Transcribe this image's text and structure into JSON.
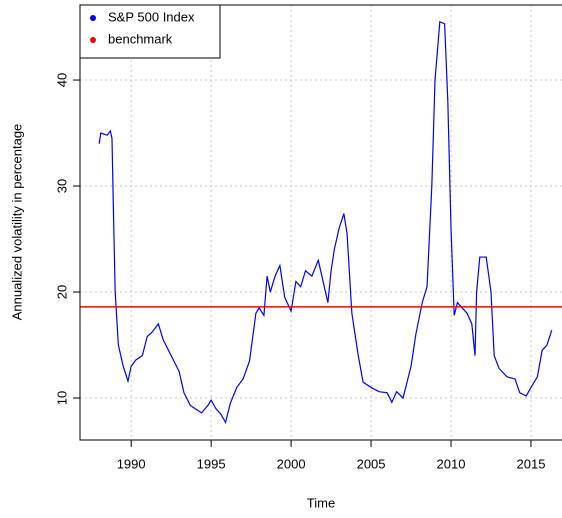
{
  "chart_data": {
    "type": "line",
    "x_label": "Time",
    "y_label": "Annualized volatility in percentage",
    "xlim": [
      1986.8,
      2016.94
    ],
    "ylim": [
      6.04,
      47.08
    ],
    "xticks": [
      1990,
      1995,
      2000,
      2005,
      2010,
      2015
    ],
    "yticks": [
      10,
      20,
      30,
      40
    ],
    "grid": true,
    "legend": "top-left",
    "x": [
      1988.0,
      1988.1,
      1988.5,
      1988.7,
      1988.8,
      1988.9,
      1989.0,
      1989.2,
      1989.5,
      1989.8,
      1990.0,
      1990.3,
      1990.7,
      1991.0,
      1991.3,
      1991.7,
      1992.0,
      1992.5,
      1993.0,
      1993.3,
      1993.7,
      1994.0,
      1994.4,
      1994.8,
      1995.0,
      1995.3,
      1995.6,
      1995.9,
      1996.2,
      1996.6,
      1997.0,
      1997.4,
      1997.8,
      1998.0,
      1998.3,
      1998.5,
      1998.7,
      1999.0,
      1999.3,
      1999.6,
      2000.0,
      2000.3,
      2000.6,
      2000.9,
      2001.3,
      2001.7,
      2002.0,
      2002.3,
      2002.5,
      2002.7,
      2003.0,
      2003.3,
      2003.5,
      2003.8,
      2004.2,
      2004.5,
      2005.0,
      2005.5,
      2006.0,
      2006.3,
      2006.6,
      2007.0,
      2007.5,
      2007.8,
      2008.2,
      2008.5,
      2008.8,
      2009.0,
      2009.3,
      2009.6,
      2009.8,
      2010.0,
      2010.2,
      2010.4,
      2010.7,
      2011.0,
      2011.3,
      2011.5,
      2011.6,
      2011.8,
      2012.2,
      2012.5,
      2012.7,
      2013.0,
      2013.5,
      2014.0,
      2014.3,
      2014.7,
      2015.0,
      2015.4,
      2015.7,
      2016.0,
      2016.3
    ],
    "series": [
      {
        "name": "S&P 500 Index",
        "color": "#0000ff",
        "values": [
          34,
          35,
          34.8,
          35.2,
          34.5,
          27,
          20,
          15,
          13,
          11.6,
          13,
          13.6,
          14,
          15.8,
          16.2,
          17,
          15.5,
          14,
          12.5,
          10.5,
          9.3,
          9,
          8.6,
          9.3,
          9.8,
          9,
          8.5,
          7.7,
          9.5,
          11,
          11.8,
          13.5,
          18,
          18.5,
          17.8,
          21.5,
          20,
          21.5,
          22.5,
          19.5,
          18.2,
          21,
          20.5,
          22,
          21.5,
          23,
          21,
          19,
          22,
          24,
          26,
          27.4,
          25.5,
          18,
          14,
          11.5,
          11,
          10.6,
          10.5,
          9.6,
          10.6,
          10,
          13,
          16,
          19,
          20.5,
          30,
          40,
          45.5,
          45.3,
          38,
          26,
          17.8,
          19,
          18.5,
          18,
          17,
          14,
          20,
          23.3,
          23.3,
          20,
          14,
          12.8,
          12,
          11.8,
          10.5,
          10.2,
          11,
          12,
          14.5,
          15,
          16.4
        ]
      },
      {
        "name": "benchmark",
        "color": "#ff0000",
        "hline": 18.6
      }
    ]
  }
}
